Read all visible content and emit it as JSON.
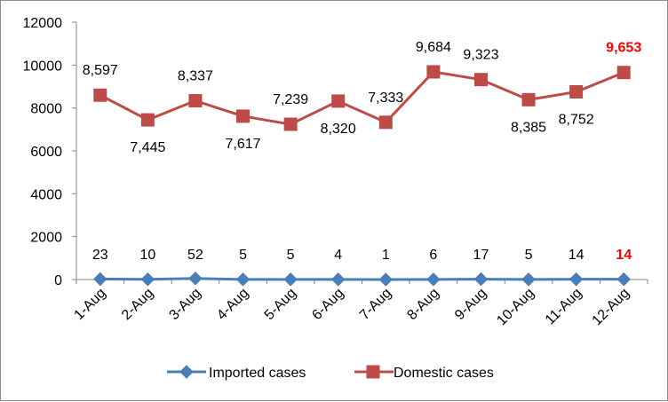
{
  "chart_data": {
    "type": "line",
    "categories": [
      "1-Aug",
      "2-Aug",
      "3-Aug",
      "4-Aug",
      "5-Aug",
      "6-Aug",
      "7-Aug",
      "8-Aug",
      "9-Aug",
      "10-Aug",
      "11-Aug",
      "12-Aug"
    ],
    "series": [
      {
        "name": "Imported cases",
        "color": "#4a7ebb",
        "marker": "diamond",
        "values": [
          23,
          10,
          52,
          5,
          5,
          4,
          1,
          6,
          17,
          5,
          14,
          14
        ],
        "labels": [
          "23",
          "10",
          "52",
          "5",
          "5",
          "4",
          "1",
          "6",
          "17",
          "5",
          "14",
          "14"
        ],
        "highlight_index": 11,
        "highlight_color": "#ff0000"
      },
      {
        "name": "Domestic cases",
        "color": "#be4b48",
        "marker": "square",
        "values": [
          8597,
          7445,
          8337,
          7617,
          7239,
          8320,
          7333,
          9684,
          9323,
          8385,
          8752,
          9653
        ],
        "labels": [
          "8,597",
          "7,445",
          "8,337",
          "7,617",
          "7,239",
          "8,320",
          "7,333",
          "9,684",
          "9,323",
          "8,385",
          "8,752",
          "9,653"
        ],
        "highlight_index": 11,
        "highlight_color": "#ff0000"
      }
    ],
    "ylim": [
      0,
      12000
    ],
    "yticks": [
      "0",
      "2000",
      "4000",
      "6000",
      "8000",
      "10000",
      "12000"
    ],
    "grid": false,
    "legend_position": "bottom",
    "axis_color": "#868686"
  }
}
